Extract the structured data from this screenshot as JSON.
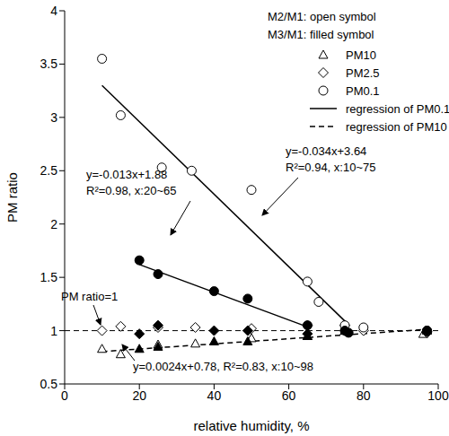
{
  "chart_data": {
    "type": "scatter",
    "xlabel": "relative humidity, %",
    "ylabel": "PM ratio",
    "xlim": [
      0,
      100
    ],
    "xticks": [
      0,
      20,
      40,
      60,
      80,
      100
    ],
    "ylim": [
      0.5,
      4
    ],
    "yticks": [
      0.5,
      1,
      1.5,
      2,
      2.5,
      3,
      3.5,
      4
    ],
    "legend": "upper right",
    "legend_notes": [
      "M2/M1: open symbol",
      "M3/M1: filled symbol"
    ],
    "series": [
      {
        "name": "PM10",
        "type": "scatter",
        "marker": "triangle-open",
        "color": "#000000",
        "x": [
          10,
          15,
          25,
          35,
          50,
          65,
          75,
          96
        ],
        "values": [
          0.83,
          0.78,
          0.87,
          0.88,
          0.93,
          0.95,
          1.0,
          0.97
        ]
      },
      {
        "name": "PM10",
        "type": "scatter",
        "marker": "triangle-filled",
        "color": "#000000",
        "x": [
          20,
          25,
          40,
          49,
          65,
          75,
          97
        ],
        "values": [
          0.83,
          0.85,
          0.9,
          0.9,
          0.95,
          1.0,
          1.0
        ]
      },
      {
        "name": "PM2.5",
        "type": "scatter",
        "marker": "diamond-open",
        "color": "#000000",
        "x": [
          10,
          15,
          25,
          35,
          50,
          65,
          75,
          80,
          97
        ],
        "values": [
          1.0,
          1.04,
          1.03,
          1.03,
          1.02,
          1.05,
          1.05,
          1.0,
          0.98
        ]
      },
      {
        "name": "PM2.5",
        "type": "scatter",
        "marker": "diamond-filled",
        "color": "#000000",
        "x": [
          20,
          25,
          40,
          49,
          65,
          75,
          97
        ],
        "values": [
          0.97,
          1.05,
          1.0,
          1.0,
          0.97,
          1.0,
          0.99
        ]
      },
      {
        "name": "PM0.1",
        "type": "scatter",
        "marker": "circle-open",
        "color": "#000000",
        "x": [
          10,
          15,
          26,
          34,
          50,
          65,
          68,
          75,
          80,
          97
        ],
        "values": [
          3.55,
          3.02,
          2.53,
          2.5,
          2.32,
          1.46,
          1.27,
          1.05,
          1.03,
          1.0
        ]
      },
      {
        "name": "PM0.1",
        "type": "scatter",
        "marker": "circle-filled",
        "color": "#000000",
        "x": [
          20,
          25,
          40,
          49,
          65,
          75,
          76,
          97
        ],
        "values": [
          1.66,
          1.53,
          1.37,
          1.3,
          1.05,
          1.0,
          0.98,
          1.0
        ]
      },
      {
        "name": "regression of PM0.1",
        "type": "line",
        "line_style": "solid",
        "color": "#000000",
        "x": [
          10,
          75
        ],
        "values": [
          3.3,
          1.09
        ]
      },
      {
        "name": "regression of PM0.1",
        "type": "line",
        "line_style": "solid",
        "color": "#000000",
        "x": [
          20,
          65
        ],
        "values": [
          1.62,
          1.035
        ]
      },
      {
        "name": "regression of PM10",
        "type": "line",
        "line_style": "dashed",
        "color": "#000000",
        "x": [
          10,
          98
        ],
        "values": [
          0.804,
          1.015
        ]
      }
    ],
    "reference_line": {
      "value": 1,
      "label": "PM ratio=1",
      "line_style": "dashed"
    },
    "annotations": [
      [
        "y=-0.034x+3.64",
        "R²=0.94, x:10~75"
      ],
      [
        "y=-0.013x+1.88",
        "R²=0.98, x:20~65"
      ],
      [
        "y=0.0024x+0.78, R²=0.83, x:10~98"
      ]
    ]
  }
}
